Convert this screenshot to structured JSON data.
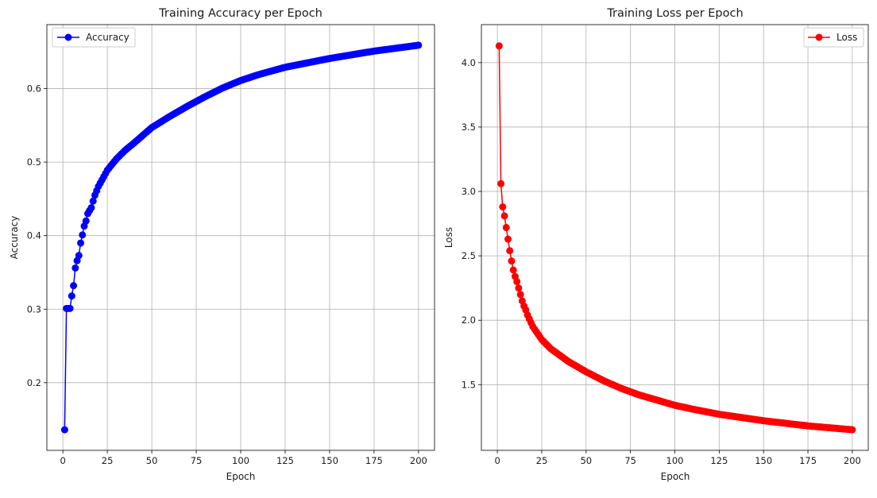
{
  "chart_data": [
    {
      "type": "line",
      "title": "Training Accuracy per Epoch",
      "xlabel": "Epoch",
      "ylabel": "Accuracy",
      "xlim": [
        -9,
        209
      ],
      "ylim": [
        0.108,
        0.687
      ],
      "grid": true,
      "legend": "top-left",
      "color": "#0000ff",
      "marker": "circle",
      "xticks": [
        0,
        25,
        50,
        75,
        100,
        125,
        150,
        175,
        200
      ],
      "xtick_labels": [
        "0",
        "25",
        "50",
        "75",
        "100",
        "125",
        "150",
        "175",
        "200"
      ],
      "yticks": [
        0.2,
        0.3,
        0.4,
        0.5,
        0.6
      ],
      "ytick_labels": [
        "0.2",
        "0.3",
        "0.4",
        "0.5",
        "0.6"
      ],
      "series": [
        {
          "name": "Accuracy",
          "keypoints": [
            [
              1,
              0.136
            ],
            [
              2,
              0.301
            ],
            [
              3,
              0.301
            ],
            [
              4,
              0.301
            ],
            [
              5,
              0.318
            ],
            [
              6,
              0.332
            ],
            [
              7,
              0.356
            ],
            [
              8,
              0.366
            ],
            [
              9,
              0.373
            ],
            [
              10,
              0.39
            ],
            [
              11,
              0.401
            ],
            [
              12,
              0.413
            ],
            [
              13,
              0.42
            ],
            [
              14,
              0.43
            ],
            [
              15,
              0.434
            ],
            [
              16,
              0.438
            ],
            [
              17,
              0.447
            ],
            [
              18,
              0.455
            ],
            [
              19,
              0.461
            ],
            [
              20,
              0.467
            ],
            [
              25,
              0.489
            ],
            [
              30,
              0.504
            ],
            [
              35,
              0.516
            ],
            [
              40,
              0.526
            ],
            [
              50,
              0.547
            ],
            [
              60,
              0.562
            ],
            [
              70,
              0.576
            ],
            [
              80,
              0.589
            ],
            [
              90,
              0.601
            ],
            [
              100,
              0.611
            ],
            [
              110,
              0.619
            ],
            [
              125,
              0.629
            ],
            [
              150,
              0.641
            ],
            [
              175,
              0.651
            ],
            [
              200,
              0.659
            ]
          ]
        }
      ]
    },
    {
      "type": "line",
      "title": "Training Loss per Epoch",
      "xlabel": "Epoch",
      "ylabel": "Loss",
      "xlim": [
        -9,
        209
      ],
      "ylim": [
        0.99,
        4.295
      ],
      "grid": true,
      "legend": "top-right",
      "color": "#ff0000",
      "marker": "circle",
      "xticks": [
        0,
        25,
        50,
        75,
        100,
        125,
        150,
        175,
        200
      ],
      "xtick_labels": [
        "0",
        "25",
        "50",
        "75",
        "100",
        "125",
        "150",
        "175",
        "200"
      ],
      "yticks": [
        1.5,
        2.0,
        2.5,
        3.0,
        3.5,
        4.0
      ],
      "ytick_labels": [
        "1.5",
        "2.0",
        "2.5",
        "3.0",
        "3.5",
        "4.0"
      ],
      "series": [
        {
          "name": "Loss",
          "keypoints": [
            [
              1,
              4.13
            ],
            [
              2,
              3.06
            ],
            [
              3,
              2.88
            ],
            [
              4,
              2.81
            ],
            [
              5,
              2.72
            ],
            [
              6,
              2.63
            ],
            [
              7,
              2.54
            ],
            [
              8,
              2.46
            ],
            [
              9,
              2.39
            ],
            [
              10,
              2.34
            ],
            [
              11,
              2.3
            ],
            [
              12,
              2.25
            ],
            [
              13,
              2.2
            ],
            [
              14,
              2.15
            ],
            [
              15,
              2.11
            ],
            [
              16,
              2.08
            ],
            [
              17,
              2.04
            ],
            [
              18,
              2.01
            ],
            [
              19,
              1.98
            ],
            [
              20,
              1.95
            ],
            [
              25,
              1.85
            ],
            [
              30,
              1.78
            ],
            [
              35,
              1.73
            ],
            [
              40,
              1.68
            ],
            [
              50,
              1.6
            ],
            [
              60,
              1.53
            ],
            [
              70,
              1.47
            ],
            [
              80,
              1.42
            ],
            [
              90,
              1.38
            ],
            [
              100,
              1.34
            ],
            [
              110,
              1.31
            ],
            [
              125,
              1.27
            ],
            [
              150,
              1.22
            ],
            [
              175,
              1.18
            ],
            [
              200,
              1.15
            ]
          ]
        }
      ]
    }
  ]
}
